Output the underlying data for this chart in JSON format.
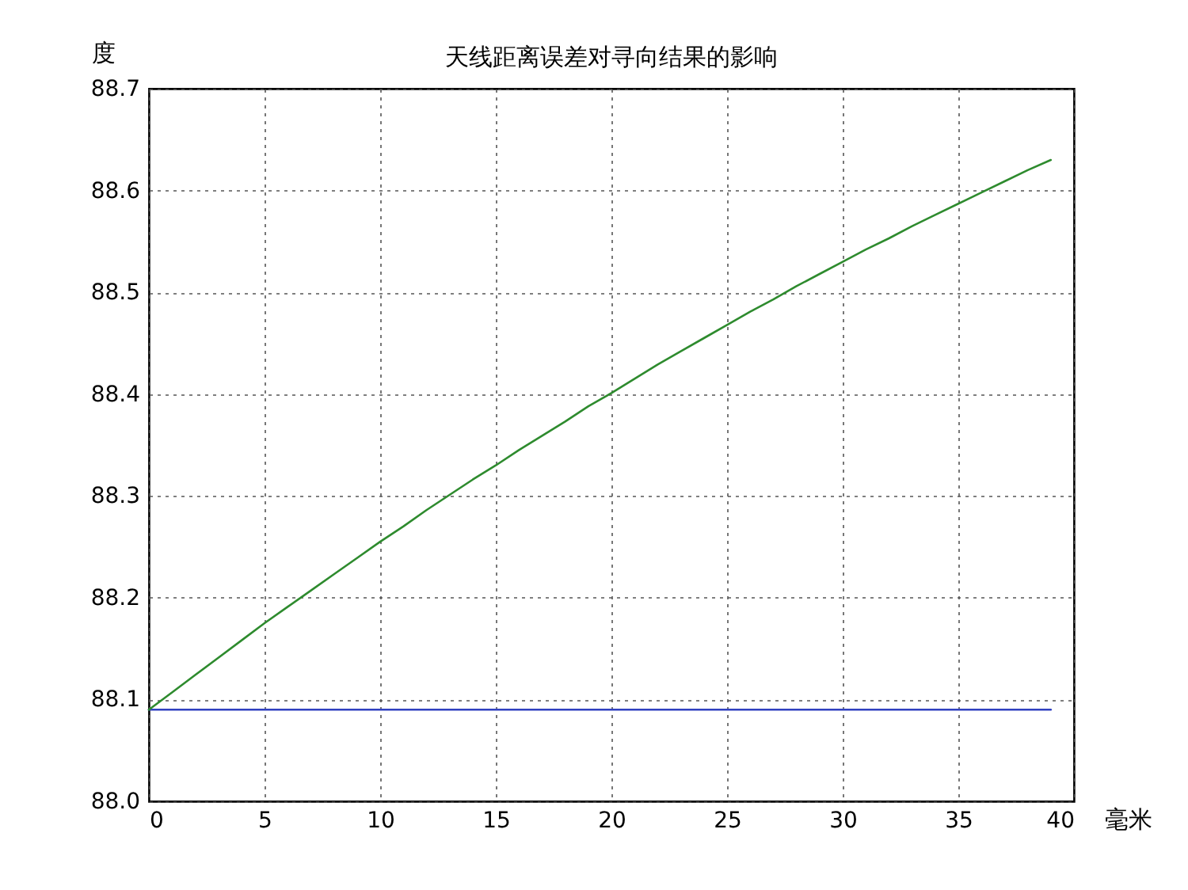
{
  "chart_data": {
    "type": "line",
    "title": "天线距离误差对寻向结果的影响",
    "xlabel": "毫米",
    "ylabel": "度",
    "xlim": [
      0,
      40
    ],
    "xticks": [
      0,
      5,
      10,
      15,
      20,
      25,
      30,
      35,
      40
    ],
    "ylim": [
      88.0,
      88.7
    ],
    "yticks": [
      {
        "value": 88,
        "label": "88.0"
      },
      88.1,
      88.2,
      88.3,
      88.4,
      88.5,
      88.6,
      88.7
    ],
    "grid": true,
    "series": [
      {
        "color": "#3040c0",
        "x": [
          0,
          39
        ],
        "values": [
          88.09,
          88.09
        ]
      },
      {
        "color": "#2e8b2e",
        "x": [
          0,
          1,
          2,
          3,
          4,
          5,
          6,
          7,
          8,
          9,
          10,
          11,
          12,
          13,
          14,
          15,
          16,
          17,
          18,
          19,
          20,
          21,
          22,
          23,
          24,
          25,
          26,
          27,
          28,
          29,
          30,
          31,
          32,
          33,
          34,
          35,
          36,
          37,
          38,
          39
        ],
        "values": [
          88.09,
          88.107,
          88.124,
          88.141,
          88.158,
          88.175,
          88.191,
          88.207,
          88.223,
          88.239,
          88.255,
          88.27,
          88.286,
          88.301,
          88.316,
          88.33,
          88.345,
          88.359,
          88.373,
          88.388,
          88.401,
          88.415,
          88.429,
          88.442,
          88.455,
          88.468,
          88.481,
          88.493,
          88.506,
          88.518,
          88.53,
          88.542,
          88.553,
          88.565,
          88.576,
          88.587,
          88.598,
          88.609,
          88.62,
          88.63
        ]
      }
    ]
  }
}
